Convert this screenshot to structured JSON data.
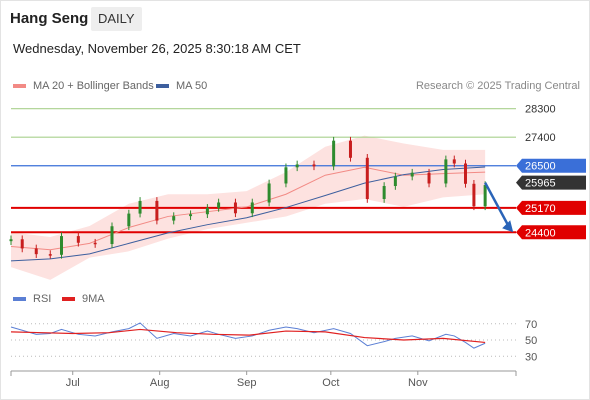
{
  "header": {
    "title": "Hang Seng",
    "timeframe": "DAILY",
    "datetime": "Wednesday, November 26, 2025 8:30:18 AM CET"
  },
  "legend": {
    "ma20": {
      "label": "MA 20 + Bollinger Bands",
      "color": "#f28a85"
    },
    "ma50": {
      "label": "MA 50",
      "color": "#3d5f9e"
    },
    "credit": "Research © 2025 Trading Central"
  },
  "rsi_legend": {
    "rsi": {
      "label": "RSI",
      "color": "#5b7fd4"
    },
    "ma9": {
      "label": "9MA",
      "color": "#e02020"
    }
  },
  "colors": {
    "resistance": "#a9d18e",
    "pivot": "#3a6fd8",
    "support": "#e00000",
    "last": "#333333",
    "candle_up": "#2e8b2e",
    "candle_down": "#c81e1e",
    "band": "#fde2e0"
  },
  "chart_data": [
    {
      "type": "line",
      "title": "Hang Seng",
      "timeframe": "DAILY",
      "x_labels": [
        "Jul",
        "Aug",
        "Sep",
        "Oct",
        "Nov"
      ],
      "y_range": [
        22800,
        28700
      ],
      "levels": [
        {
          "kind": "resistance",
          "value": 28300,
          "label": "28300"
        },
        {
          "kind": "resistance",
          "value": 27400,
          "label": "27400"
        },
        {
          "kind": "pivot",
          "value": 26500,
          "label": "26500"
        },
        {
          "kind": "last",
          "value": 25965,
          "label": "25965"
        },
        {
          "kind": "support",
          "value": 25170,
          "label": "25170"
        },
        {
          "kind": "support",
          "value": 24400,
          "label": "24400"
        }
      ],
      "close_series": [
        {
          "date": "2025-06-09",
          "close": 24180
        },
        {
          "date": "2025-06-13",
          "close": 23890
        },
        {
          "date": "2025-06-18",
          "close": 23710
        },
        {
          "date": "2025-06-23",
          "close": 23690
        },
        {
          "date": "2025-06-27",
          "close": 24280
        },
        {
          "date": "2025-07-03",
          "close": 24070
        },
        {
          "date": "2025-07-09",
          "close": 24030
        },
        {
          "date": "2025-07-15",
          "close": 24590
        },
        {
          "date": "2025-07-21",
          "close": 24990
        },
        {
          "date": "2025-07-25",
          "close": 25390
        },
        {
          "date": "2025-07-31",
          "close": 24770
        },
        {
          "date": "2025-08-06",
          "close": 24910
        },
        {
          "date": "2025-08-12",
          "close": 24970
        },
        {
          "date": "2025-08-18",
          "close": 25170
        },
        {
          "date": "2025-08-22",
          "close": 25340
        },
        {
          "date": "2025-08-28",
          "close": 25000
        },
        {
          "date": "2025-09-03",
          "close": 25340
        },
        {
          "date": "2025-09-09",
          "close": 25940
        },
        {
          "date": "2025-09-15",
          "close": 26450
        },
        {
          "date": "2025-09-19",
          "close": 26540
        },
        {
          "date": "2025-09-25",
          "close": 26480
        },
        {
          "date": "2025-10-02",
          "close": 27290
        },
        {
          "date": "2025-10-08",
          "close": 26750
        },
        {
          "date": "2025-10-14",
          "close": 25450
        },
        {
          "date": "2025-10-20",
          "close": 25860
        },
        {
          "date": "2025-10-24",
          "close": 26160
        },
        {
          "date": "2025-10-30",
          "close": 26280
        },
        {
          "date": "2025-11-05",
          "close": 25940
        },
        {
          "date": "2025-11-11",
          "close": 26700
        },
        {
          "date": "2025-11-14",
          "close": 26570
        },
        {
          "date": "2025-11-18",
          "close": 25930
        },
        {
          "date": "2025-11-21",
          "close": 25220
        },
        {
          "date": "2025-11-25",
          "close": 25890
        }
      ],
      "ma50_series": [
        {
          "date": "2025-06-09",
          "value": 23500
        },
        {
          "date": "2025-06-23",
          "value": 23560
        },
        {
          "date": "2025-07-07",
          "value": 23720
        },
        {
          "date": "2025-07-21",
          "value": 24050
        },
        {
          "date": "2025-08-04",
          "value": 24380
        },
        {
          "date": "2025-08-18",
          "value": 24640
        },
        {
          "date": "2025-09-01",
          "value": 24860
        },
        {
          "date": "2025-09-15",
          "value": 25180
        },
        {
          "date": "2025-09-29",
          "value": 25560
        },
        {
          "date": "2025-10-13",
          "value": 25950
        },
        {
          "date": "2025-10-27",
          "value": 26220
        },
        {
          "date": "2025-11-10",
          "value": 26380
        },
        {
          "date": "2025-11-25",
          "value": 26460
        }
      ],
      "bollinger": {
        "ma20": [
          {
            "date": "2025-06-09",
            "value": 23950
          },
          {
            "date": "2025-06-23",
            "value": 23850
          },
          {
            "date": "2025-07-07",
            "value": 24050
          },
          {
            "date": "2025-07-21",
            "value": 24550
          },
          {
            "date": "2025-08-04",
            "value": 24900
          },
          {
            "date": "2025-08-18",
            "value": 25050
          },
          {
            "date": "2025-09-01",
            "value": 25200
          },
          {
            "date": "2025-09-15",
            "value": 25600
          },
          {
            "date": "2025-09-29",
            "value": 26200
          },
          {
            "date": "2025-10-13",
            "value": 26450
          },
          {
            "date": "2025-10-27",
            "value": 26200
          },
          {
            "date": "2025-11-10",
            "value": 26250
          },
          {
            "date": "2025-11-25",
            "value": 26300
          }
        ],
        "upper": [
          {
            "date": "2025-06-09",
            "value": 24400
          },
          {
            "date": "2025-06-23",
            "value": 24250
          },
          {
            "date": "2025-07-07",
            "value": 24600
          },
          {
            "date": "2025-07-21",
            "value": 25300
          },
          {
            "date": "2025-08-04",
            "value": 25600
          },
          {
            "date": "2025-08-18",
            "value": 25600
          },
          {
            "date": "2025-09-01",
            "value": 25700
          },
          {
            "date": "2025-09-15",
            "value": 26300
          },
          {
            "date": "2025-09-29",
            "value": 27100
          },
          {
            "date": "2025-10-13",
            "value": 27450
          },
          {
            "date": "2025-10-27",
            "value": 27200
          },
          {
            "date": "2025-11-10",
            "value": 27000
          },
          {
            "date": "2025-11-25",
            "value": 27000
          }
        ],
        "lower": [
          {
            "date": "2025-06-09",
            "value": 23300
          },
          {
            "date": "2025-06-23",
            "value": 22900
          },
          {
            "date": "2025-07-07",
            "value": 23600
          },
          {
            "date": "2025-07-21",
            "value": 23800
          },
          {
            "date": "2025-08-04",
            "value": 24200
          },
          {
            "date": "2025-08-18",
            "value": 24500
          },
          {
            "date": "2025-09-01",
            "value": 24700
          },
          {
            "date": "2025-09-15",
            "value": 24900
          },
          {
            "date": "2025-09-29",
            "value": 25300
          },
          {
            "date": "2025-10-13",
            "value": 25450
          },
          {
            "date": "2025-10-27",
            "value": 25200
          },
          {
            "date": "2025-11-10",
            "value": 25500
          },
          {
            "date": "2025-11-25",
            "value": 25600
          }
        ]
      },
      "forecast_arrow": {
        "from": {
          "date": "2025-11-25",
          "value": 25965
        },
        "to": {
          "date": "2025-12-05",
          "value": 24400
        }
      }
    },
    {
      "type": "line",
      "title": "RSI",
      "y_ticks": [
        70,
        50,
        30
      ],
      "y_range": [
        18,
        82
      ],
      "rsi_series": [
        {
          "date": "2025-06-09",
          "value": 66
        },
        {
          "date": "2025-06-13",
          "value": 62
        },
        {
          "date": "2025-06-18",
          "value": 57
        },
        {
          "date": "2025-06-23",
          "value": 58
        },
        {
          "date": "2025-06-27",
          "value": 63
        },
        {
          "date": "2025-07-03",
          "value": 57
        },
        {
          "date": "2025-07-09",
          "value": 55
        },
        {
          "date": "2025-07-15",
          "value": 60
        },
        {
          "date": "2025-07-21",
          "value": 64
        },
        {
          "date": "2025-07-25",
          "value": 71
        },
        {
          "date": "2025-07-31",
          "value": 52
        },
        {
          "date": "2025-08-06",
          "value": 58
        },
        {
          "date": "2025-08-12",
          "value": 55
        },
        {
          "date": "2025-08-18",
          "value": 61
        },
        {
          "date": "2025-08-22",
          "value": 57
        },
        {
          "date": "2025-08-28",
          "value": 52
        },
        {
          "date": "2025-09-03",
          "value": 55
        },
        {
          "date": "2025-09-09",
          "value": 62
        },
        {
          "date": "2025-09-15",
          "value": 66
        },
        {
          "date": "2025-09-19",
          "value": 64
        },
        {
          "date": "2025-09-25",
          "value": 59
        },
        {
          "date": "2025-10-02",
          "value": 64
        },
        {
          "date": "2025-10-08",
          "value": 58
        },
        {
          "date": "2025-10-14",
          "value": 43
        },
        {
          "date": "2025-10-20",
          "value": 48
        },
        {
          "date": "2025-10-24",
          "value": 52
        },
        {
          "date": "2025-10-30",
          "value": 55
        },
        {
          "date": "2025-11-05",
          "value": 49
        },
        {
          "date": "2025-11-11",
          "value": 57
        },
        {
          "date": "2025-11-14",
          "value": 55
        },
        {
          "date": "2025-11-18",
          "value": 47
        },
        {
          "date": "2025-11-21",
          "value": 40
        },
        {
          "date": "2025-11-25",
          "value": 46
        }
      ],
      "ma9_series": [
        {
          "date": "2025-06-09",
          "value": 60
        },
        {
          "date": "2025-06-20",
          "value": 59
        },
        {
          "date": "2025-07-01",
          "value": 58
        },
        {
          "date": "2025-07-14",
          "value": 59
        },
        {
          "date": "2025-07-25",
          "value": 63
        },
        {
          "date": "2025-08-07",
          "value": 59
        },
        {
          "date": "2025-08-20",
          "value": 57
        },
        {
          "date": "2025-09-02",
          "value": 56
        },
        {
          "date": "2025-09-15",
          "value": 61
        },
        {
          "date": "2025-09-29",
          "value": 60
        },
        {
          "date": "2025-10-13",
          "value": 53
        },
        {
          "date": "2025-10-27",
          "value": 50
        },
        {
          "date": "2025-11-10",
          "value": 52
        },
        {
          "date": "2025-11-25",
          "value": 47
        }
      ]
    }
  ]
}
